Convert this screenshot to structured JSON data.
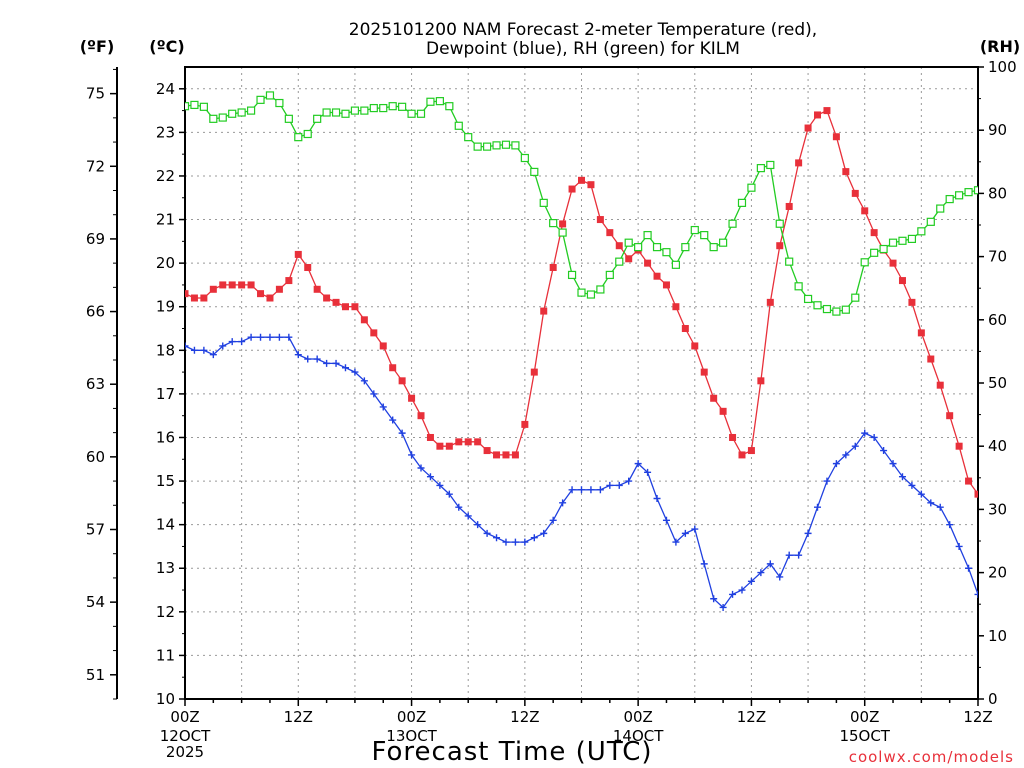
{
  "chart_data": {
    "type": "line",
    "title_line1": "2025101200 NAM Forecast 2-meter Temperature (red),",
    "title_line2": "Dewpoint (blue), RH (green) for KILM",
    "unit_f": "(ºF)",
    "unit_c": "(ºC)",
    "unit_rh": "(RH)",
    "xlabel": "Forecast Time (UTC)",
    "credit": "coolwx.com/models",
    "colors": {
      "temperature": "#e8303a",
      "dewpoint": "#2040e0",
      "rh": "#22cc22",
      "grid": "#999999"
    },
    "xlim": [
      0,
      84
    ],
    "ylim_c": [
      10,
      24.5
    ],
    "ylim_rh": [
      0,
      100
    ],
    "x_ticks": [
      {
        "x": 0,
        "l1": "00Z",
        "l2": "12OCT",
        "l3": "2025"
      },
      {
        "x": 12,
        "l1": "12Z",
        "l2": "",
        "l3": ""
      },
      {
        "x": 24,
        "l1": "00Z",
        "l2": "13OCT",
        "l3": ""
      },
      {
        "x": 36,
        "l1": "12Z",
        "l2": "",
        "l3": ""
      },
      {
        "x": 48,
        "l1": "00Z",
        "l2": "14OCT",
        "l3": ""
      },
      {
        "x": 60,
        "l1": "12Z",
        "l2": "",
        "l3": ""
      },
      {
        "x": 72,
        "l1": "00Z",
        "l2": "15OCT",
        "l3": ""
      },
      {
        "x": 84,
        "l1": "12Z",
        "l2": "",
        "l3": ""
      }
    ],
    "ticks_c": [
      "10",
      "11",
      "12",
      "13",
      "14",
      "15",
      "16",
      "17",
      "18",
      "19",
      "20",
      "21",
      "22",
      "23",
      "24"
    ],
    "ticks_f": [
      "51",
      "54",
      "57",
      "60",
      "63",
      "66",
      "69",
      "72",
      "75"
    ],
    "ticks_rh": [
      "0",
      "10",
      "20",
      "30",
      "40",
      "50",
      "60",
      "70",
      "80",
      "90",
      "100"
    ],
    "series": [
      {
        "name": "Temperature",
        "key": "temperature",
        "x": [
          0,
          1,
          2,
          3,
          4,
          5,
          6,
          7,
          8,
          9,
          10,
          11,
          12,
          13,
          14,
          15,
          16,
          17,
          18,
          19,
          20,
          21,
          22,
          23,
          24,
          25,
          26,
          27,
          28,
          29,
          30,
          31,
          32,
          33,
          34,
          35,
          36,
          37,
          38,
          39,
          40,
          41,
          42,
          43,
          44,
          45,
          46,
          47,
          48,
          49,
          50,
          51,
          52,
          53,
          54,
          55,
          56,
          57,
          58,
          59,
          60,
          61,
          62,
          63,
          64,
          65,
          66,
          67,
          68,
          69,
          70,
          71,
          72,
          73,
          74,
          75,
          76,
          77,
          78,
          79,
          80,
          81,
          82,
          83,
          84
        ],
        "values": [
          19.3,
          19.2,
          19.2,
          19.4,
          19.5,
          19.5,
          19.5,
          19.5,
          19.3,
          19.2,
          19.4,
          19.6,
          20.2,
          19.9,
          19.4,
          19.2,
          19.1,
          19.0,
          19.0,
          18.7,
          18.4,
          18.1,
          17.6,
          17.3,
          16.9,
          16.5,
          16.0,
          15.8,
          15.8,
          15.9,
          15.9,
          15.9,
          15.7,
          15.6,
          15.6,
          15.6,
          16.3,
          17.5,
          18.9,
          19.9,
          20.9,
          21.7,
          21.9,
          21.8,
          21.0,
          20.7,
          20.4,
          20.1,
          20.3,
          20.0,
          19.7,
          19.5,
          19.0,
          18.5,
          18.1,
          17.5,
          16.9,
          16.6,
          16.0,
          15.6,
          15.7,
          17.3,
          19.1,
          20.4,
          21.3,
          22.3,
          23.1,
          23.4,
          23.5,
          22.9,
          22.1,
          21.6,
          21.2,
          20.7,
          20.3,
          20.0,
          19.6,
          19.1,
          18.4,
          17.8,
          17.2,
          16.5,
          15.8,
          15.0,
          14.7
        ]
      },
      {
        "name": "Dewpoint",
        "key": "dewpoint",
        "x": [
          0,
          1,
          2,
          3,
          4,
          5,
          6,
          7,
          8,
          9,
          10,
          11,
          12,
          13,
          14,
          15,
          16,
          17,
          18,
          19,
          20,
          21,
          22,
          23,
          24,
          25,
          26,
          27,
          28,
          29,
          30,
          31,
          32,
          33,
          34,
          35,
          36,
          37,
          38,
          39,
          40,
          41,
          42,
          43,
          44,
          45,
          46,
          47,
          48,
          49,
          50,
          51,
          52,
          53,
          54,
          55,
          56,
          57,
          58,
          59,
          60,
          61,
          62,
          63,
          64,
          65,
          66,
          67,
          68,
          69,
          70,
          71,
          72,
          73,
          74,
          75,
          76,
          77,
          78,
          79,
          80,
          81,
          82,
          83,
          84
        ],
        "values": [
          18.1,
          18.0,
          18.0,
          17.9,
          18.1,
          18.2,
          18.2,
          18.3,
          18.3,
          18.3,
          18.3,
          18.3,
          17.9,
          17.8,
          17.8,
          17.7,
          17.7,
          17.6,
          17.5,
          17.3,
          17.0,
          16.7,
          16.4,
          16.1,
          15.6,
          15.3,
          15.1,
          14.9,
          14.7,
          14.4,
          14.2,
          14.0,
          13.8,
          13.7,
          13.6,
          13.6,
          13.6,
          13.7,
          13.8,
          14.1,
          14.5,
          14.8,
          14.8,
          14.8,
          14.8,
          14.9,
          14.9,
          15.0,
          15.4,
          15.2,
          14.6,
          14.1,
          13.6,
          13.8,
          13.9,
          13.1,
          12.3,
          12.1,
          12.4,
          12.5,
          12.7,
          12.9,
          13.1,
          12.8,
          13.3,
          13.3,
          13.8,
          14.4,
          15.0,
          15.4,
          15.6,
          15.8,
          16.1,
          16.0,
          15.7,
          15.4,
          15.1,
          14.9,
          14.7,
          14.5,
          14.4,
          14.0,
          13.5,
          13.0,
          12.4
        ]
      },
      {
        "name": "RH",
        "key": "rh",
        "x": [
          0,
          1,
          2,
          3,
          4,
          5,
          6,
          7,
          8,
          9,
          10,
          11,
          12,
          13,
          14,
          15,
          16,
          17,
          18,
          19,
          20,
          21,
          22,
          23,
          24,
          25,
          26,
          27,
          28,
          29,
          30,
          31,
          32,
          33,
          34,
          35,
          36,
          37,
          38,
          39,
          40,
          41,
          42,
          43,
          44,
          45,
          46,
          47,
          48,
          49,
          50,
          51,
          52,
          53,
          54,
          55,
          56,
          57,
          58,
          59,
          60,
          61,
          62,
          63,
          64,
          65,
          66,
          67,
          68,
          69,
          70,
          71,
          72,
          73,
          74,
          75,
          76,
          77,
          78,
          79,
          80,
          81,
          82,
          83,
          84
        ],
        "values": [
          93.8,
          94.0,
          93.7,
          91.8,
          92.0,
          92.6,
          92.8,
          93.1,
          94.8,
          95.5,
          94.3,
          91.8,
          88.9,
          89.4,
          91.8,
          92.8,
          92.8,
          92.6,
          93.1,
          93.1,
          93.5,
          93.5,
          93.8,
          93.7,
          92.6,
          92.6,
          94.5,
          94.6,
          93.8,
          90.7,
          88.9,
          87.4,
          87.4,
          87.6,
          87.7,
          87.6,
          85.6,
          83.4,
          78.5,
          75.3,
          73.8,
          67.1,
          64.3,
          64.0,
          64.8,
          67.1,
          69.2,
          72.2,
          71.5,
          73.4,
          71.5,
          70.7,
          68.7,
          71.5,
          74.2,
          73.4,
          71.5,
          72.2,
          75.2,
          78.5,
          80.9,
          84.0,
          84.5,
          75.2,
          69.2,
          65.3,
          63.3,
          62.3,
          61.7,
          61.3,
          61.6,
          63.5,
          69.1,
          70.6,
          71.2,
          72.2,
          72.5,
          72.8,
          74.0,
          75.5,
          77.6,
          79.1,
          79.7,
          80.2,
          80.5
        ]
      }
    ]
  }
}
